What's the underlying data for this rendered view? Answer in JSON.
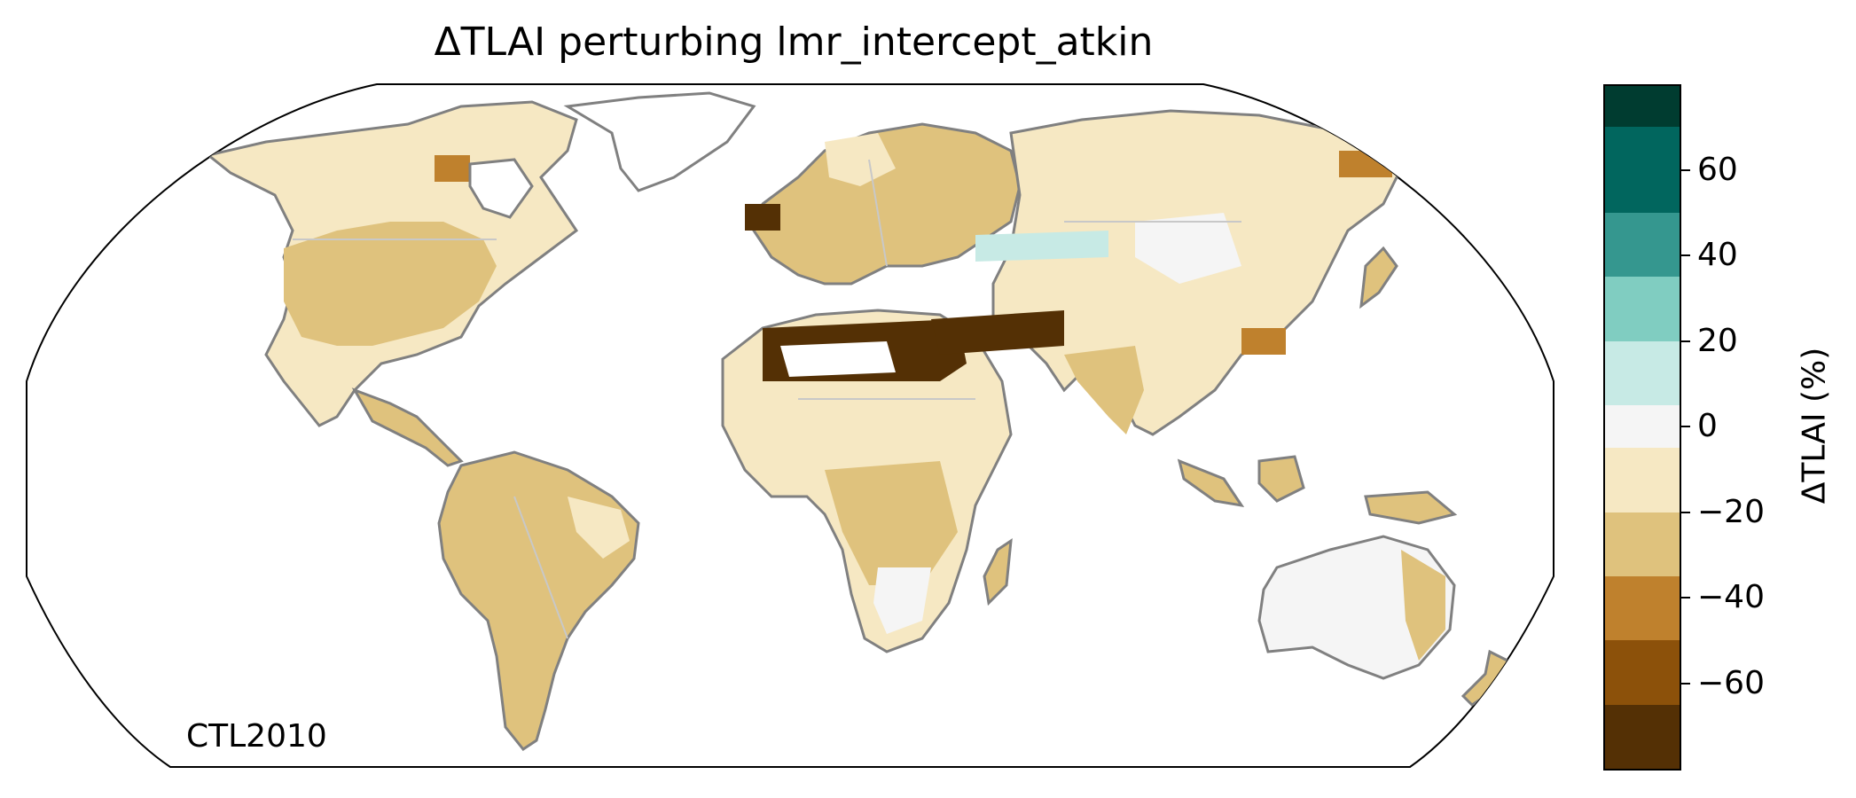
{
  "title": "ΔTLAI perturbing lmr_intercept_atkin",
  "annotation": "CTL2010",
  "colorbar": {
    "label": "ΔTLAI (%)",
    "ticks": [
      "60",
      "40",
      "20",
      "0",
      "−20",
      "−40",
      "−60"
    ],
    "tick_values": [
      60,
      40,
      20,
      0,
      -20,
      -40,
      -60
    ],
    "range": [
      -80,
      80
    ],
    "bins": [
      {
        "from": 70,
        "to": 80,
        "color": "#003c30"
      },
      {
        "from": 50,
        "to": 70,
        "color": "#01665e"
      },
      {
        "from": 35,
        "to": 50,
        "color": "#35978f"
      },
      {
        "from": 20,
        "to": 35,
        "color": "#80cdc1"
      },
      {
        "from": 5,
        "to": 20,
        "color": "#c7eae5"
      },
      {
        "from": -5,
        "to": 5,
        "color": "#f5f5f5"
      },
      {
        "from": -20,
        "to": -5,
        "color": "#f6e8c3"
      },
      {
        "from": -35,
        "to": -20,
        "color": "#dfc27d"
      },
      {
        "from": -50,
        "to": -35,
        "color": "#bf812d"
      },
      {
        "from": -65,
        "to": -50,
        "color": "#8c510a"
      },
      {
        "from": -80,
        "to": -65,
        "color": "#543005"
      }
    ]
  },
  "map": {
    "projection": "Robinson",
    "coastline_color": "#808080",
    "border_color": "#c8c8c8",
    "land_default_color": "#dfc27d"
  }
}
